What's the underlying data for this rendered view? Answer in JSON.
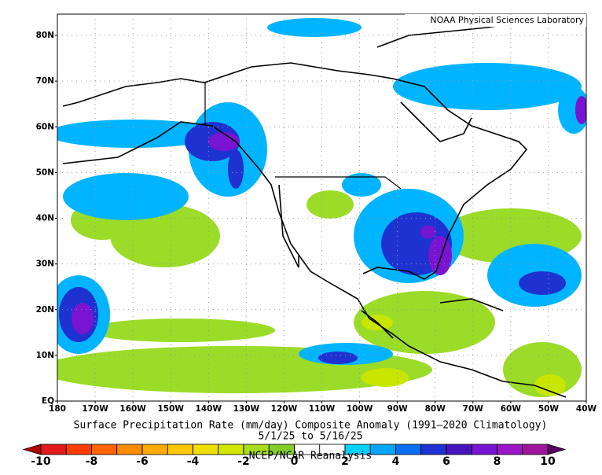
{
  "map": {
    "source": "NOAA Physical Sciences Laboratory",
    "lat_labels": [
      "80N",
      "70N",
      "60N",
      "50N",
      "40N",
      "30N",
      "20N",
      "10N",
      "EQ"
    ],
    "lon_labels": [
      "180",
      "170W",
      "160W",
      "150W",
      "140W",
      "130W",
      "120W",
      "110W",
      "100W",
      "90W",
      "80W",
      "70W",
      "60W",
      "50W",
      "40W"
    ],
    "caption": "Surface Precipitation Rate (mm/day) Composite Anomaly (1991–2020 Climatology)",
    "dates": "5/1/25   to 5/16/25",
    "dataset": "NCEP/NCAR Reanalysis",
    "colorbar": {
      "ticks": [
        -10,
        -8,
        -6,
        -4,
        -2,
        0,
        2,
        4,
        6,
        8,
        10
      ],
      "colors": [
        "#b00000",
        "#e41a1c",
        "#ff3c00",
        "#ff6400",
        "#ff8c00",
        "#ffaa00",
        "#ffc800",
        "#f0e000",
        "#d2e600",
        "#a8dc1e",
        "#82cd28",
        "#ffffff",
        "#ffffff",
        "#00d2ff",
        "#00a5ff",
        "#0a6ef0",
        "#1e32d2",
        "#4614be",
        "#7814d2",
        "#9a14c8",
        "#a0149b",
        "#5a0064"
      ]
    }
  }
}
